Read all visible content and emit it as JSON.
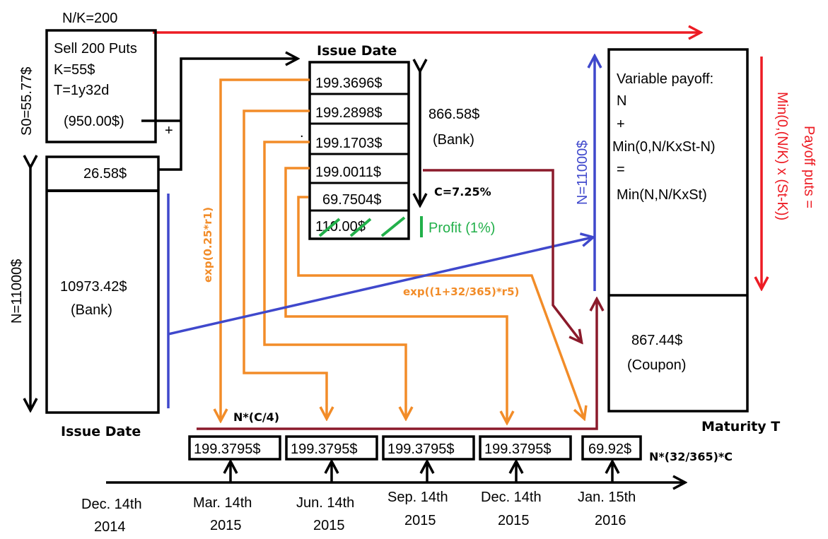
{
  "colors": {
    "black": "#000000",
    "red": "#ed1c24",
    "orange": "#f28c28",
    "blue": "#3f48cc",
    "darkred": "#8b1a2b",
    "green": "#22b04a"
  },
  "top": {
    "nk_label": "N/K=200",
    "s0_label": "S0=55.77$"
  },
  "put_box": {
    "line1": "Sell 200 Puts",
    "line2": "K=55$",
    "line3": "T=1y32d",
    "premium": "(950.00$)",
    "plus": "+"
  },
  "left_box": {
    "top_value": "26.58$",
    "bank_value": "10973.42$",
    "bank_label": "(Bank)",
    "n_label": "N=11000$",
    "issue_label": "Issue Date"
  },
  "middle": {
    "title": "Issue Date",
    "cells": [
      "199.3696$",
      "199.2898$",
      "199.1703$",
      "199.0011$",
      "69.7504$",
      "110.00$"
    ],
    "bank_value": "866.58$",
    "bank_label": "(Bank)",
    "c_label": "C=7.25%",
    "profit_label": "Profit (1%)",
    "dot": "."
  },
  "orange_labels": {
    "exp1": "exp(0.25*r1)",
    "exp5": "exp((1+32/365)*r5)"
  },
  "right_box": {
    "line1": "Variable payoff:",
    "line2": "N",
    "line3": "+",
    "line4": "Min(0,N/KxSt-N)",
    "line5": "=",
    "line6": "Min(N,N/KxSt)",
    "coupon_value": "867.44$",
    "coupon_label": "(Coupon)",
    "maturity_label": "Maturity T",
    "n_label": "N=11000$",
    "payoff_label": "Payoff puts =",
    "payoff_formula": "Min(0,(N/K) x (St-K))"
  },
  "timeline": {
    "coupon_label": "N*(C/4)",
    "last_label": "N*(32/365)*C",
    "payments": [
      "199.3795$",
      "199.3795$",
      "199.3795$",
      "199.3795$",
      "69.92$"
    ],
    "dates": [
      {
        "line1": "Dec. 14th",
        "line2": "2014"
      },
      {
        "line1": "Mar. 14th",
        "line2": "2015"
      },
      {
        "line1": "Jun. 14th",
        "line2": "2015"
      },
      {
        "line1": "Sep. 14th",
        "line2": "2015"
      },
      {
        "line1": "Dec. 14th",
        "line2": "2015"
      },
      {
        "line1": "Jan. 15th",
        "line2": "2016"
      }
    ]
  }
}
